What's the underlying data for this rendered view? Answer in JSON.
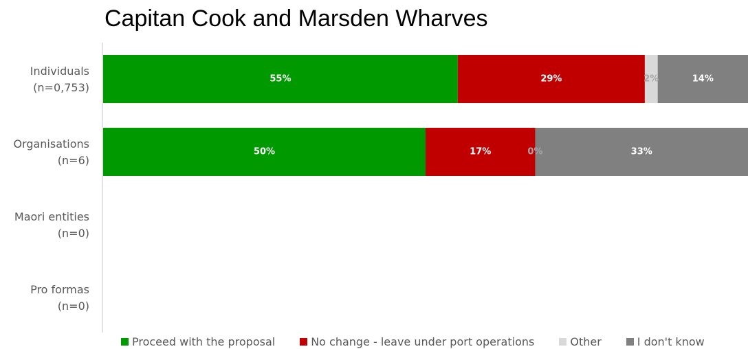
{
  "chart_data": {
    "type": "bar",
    "orientation": "horizontal",
    "stacked": true,
    "title": "Capitan Cook and Marsden Wharves",
    "categories": [
      [
        "Individuals",
        "(n=0,753)"
      ],
      [
        "Organisations",
        "(n=6)"
      ],
      [
        "Maori entities",
        "(n=0)"
      ],
      [
        "Pro formas",
        "(n=0)"
      ]
    ],
    "series": [
      {
        "name": "Proceed with the proposal",
        "color": "#009900",
        "label_color": "#ffffff",
        "values": [
          55,
          50,
          0,
          0
        ],
        "labels": [
          "55%",
          "50%",
          "",
          ""
        ]
      },
      {
        "name": "No change - leave under port operations",
        "color": "#c00000",
        "label_color": "#ffffff",
        "values": [
          29,
          17,
          0,
          0
        ],
        "labels": [
          "29%",
          "17%",
          "",
          ""
        ]
      },
      {
        "name": "Other",
        "color": "#d9d9d9",
        "label_color": "#a6a6a6",
        "values": [
          2,
          0,
          0,
          0
        ],
        "labels": [
          "2%",
          "0%",
          "",
          ""
        ]
      },
      {
        "name": "I don't know",
        "color": "#808080",
        "label_color": "#ffffff",
        "values": [
          14,
          33,
          0,
          0
        ],
        "labels": [
          "14%",
          "33%",
          "",
          ""
        ]
      }
    ],
    "xlim": [
      0,
      100
    ],
    "grid": false,
    "legend": "bottom"
  }
}
